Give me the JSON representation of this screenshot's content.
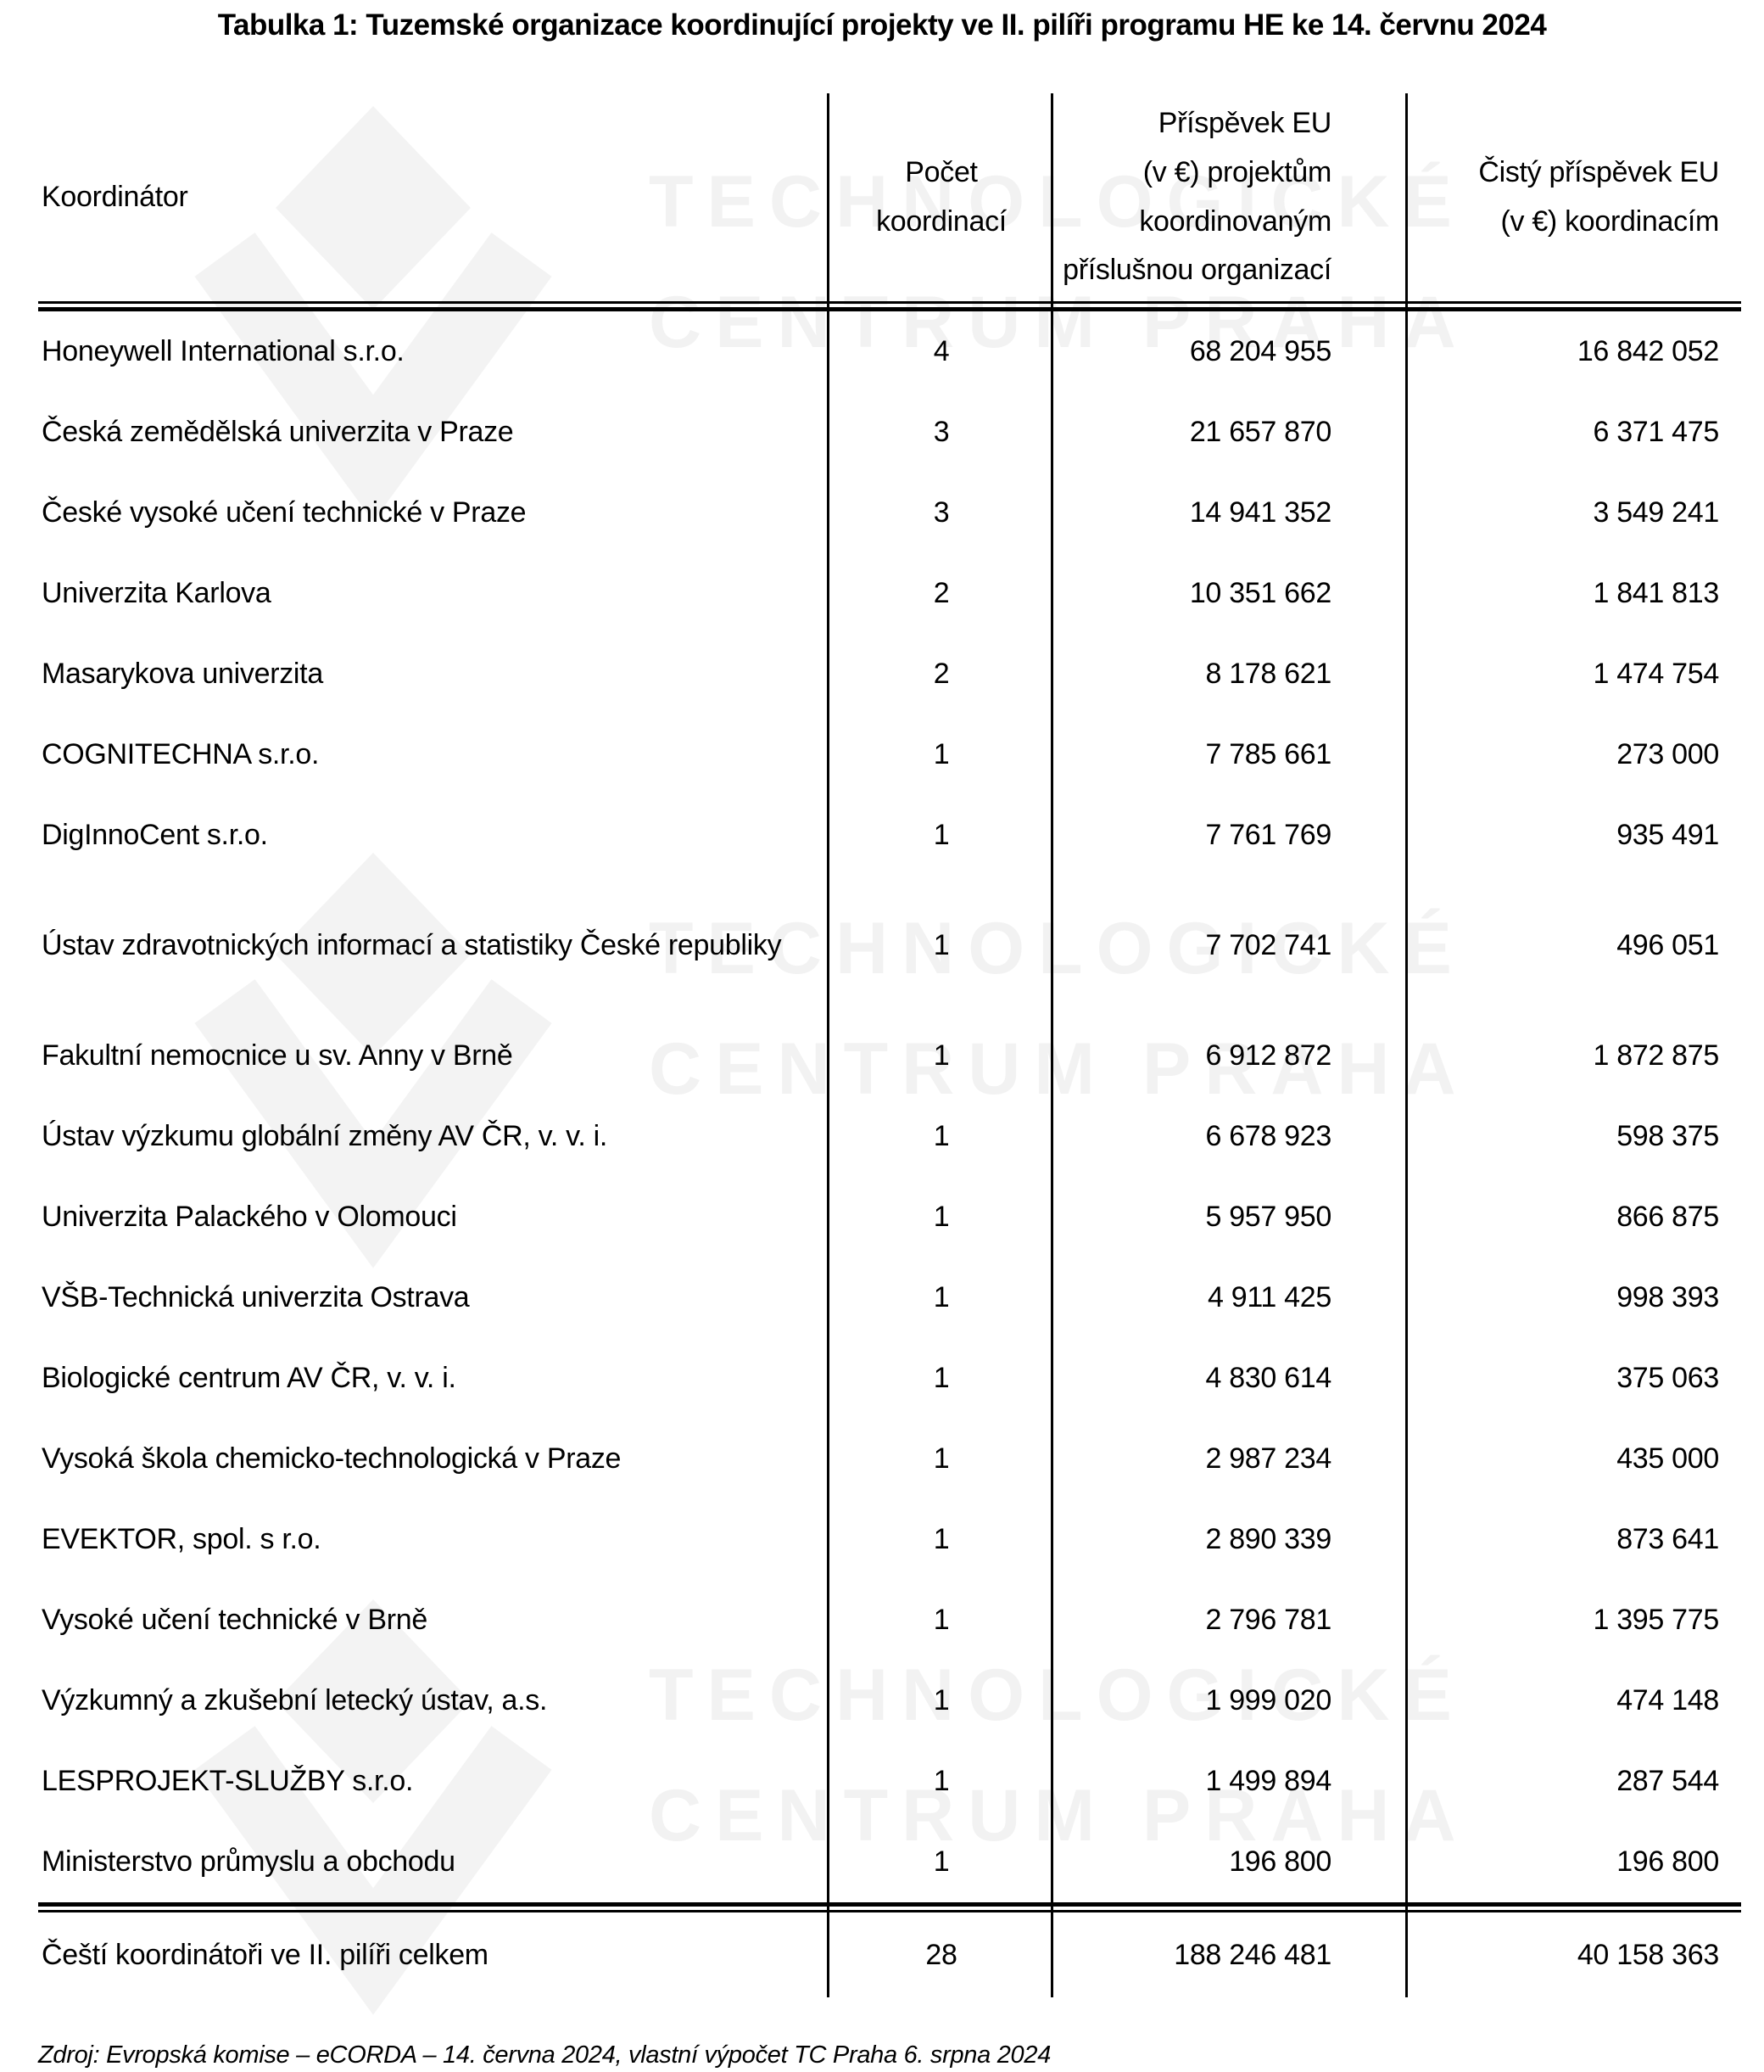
{
  "title": "Tabulka 1: Tuzemské organizace koordinující projekty ve II. pilíři programu HE ke 14. červnu 2024",
  "watermark": {
    "line1": "TECHNOLOGICKÉ",
    "line2": "CENTRUM PRAHA",
    "color": "#f2f2f2"
  },
  "chart_data": {
    "type": "table",
    "columns": [
      "Koordinátor",
      "Počet koordinací",
      "Příspěvek EU (v €) projektům koordinovaným příslušnou organizací",
      "Čistý příspěvek EU (v €) koordinacím"
    ],
    "column_lines": [
      [
        "Koordinátor"
      ],
      [
        "Počet",
        "koordinací"
      ],
      [
        "Příspěvek EU",
        "(v €) projektům",
        "koordinovaným",
        "příslušnou organizací"
      ],
      [
        "Čistý příspěvek EU",
        "(v €) koordinacím"
      ]
    ],
    "rows": [
      [
        "Honeywell International s.r.o.",
        "4",
        "68 204 955",
        "16 842 052"
      ],
      [
        "Česká zemědělská univerzita v Praze",
        "3",
        "21 657 870",
        "6 371 475"
      ],
      [
        "České vysoké učení technické v Praze",
        "3",
        "14 941 352",
        "3 549 241"
      ],
      [
        "Univerzita Karlova",
        "2",
        "10 351 662",
        "1 841 813"
      ],
      [
        "Masarykova univerzita",
        "2",
        "8 178 621",
        "1 474 754"
      ],
      [
        "COGNITECHNA s.r.o.",
        "1",
        "7 785 661",
        "273 000"
      ],
      [
        "DigInnoCent s.r.o.",
        "1",
        "7 761 769",
        "935 491"
      ],
      [
        "Ústav zdravotnických informací a statistiky České republiky",
        "1",
        "7 702 741",
        "496 051"
      ],
      [
        "Fakultní nemocnice u sv. Anny v Brně",
        "1",
        "6 912 872",
        "1 872 875"
      ],
      [
        "Ústav výzkumu globální změny AV ČR, v. v. i.",
        "1",
        "6 678 923",
        "598 375"
      ],
      [
        "Univerzita Palackého v Olomouci",
        "1",
        "5 957 950",
        "866 875"
      ],
      [
        "VŠB-Technická univerzita Ostrava",
        "1",
        "4 911 425",
        "998 393"
      ],
      [
        "Biologické centrum AV ČR, v. v. i.",
        "1",
        "4 830 614",
        "375 063"
      ],
      [
        "Vysoká škola chemicko-technologická v Praze",
        "1",
        "2 987 234",
        "435 000"
      ],
      [
        "EVEKTOR, spol. s r.o.",
        "1",
        "2 890 339",
        "873 641"
      ],
      [
        "Vysoké učení technické v Brně",
        "1",
        "2 796 781",
        "1 395 775"
      ],
      [
        "Výzkumný a zkušební letecký ústav, a.s.",
        "1",
        "1 999 020",
        "474 148"
      ],
      [
        "LESPROJEKT-SLUŽBY s.r.o.",
        "1",
        "1 499 894",
        "287 544"
      ],
      [
        "Ministerstvo průmyslu a obchodu",
        "1",
        "196 800",
        "196 800"
      ]
    ],
    "total_row": [
      "Čeští koordinátoři ve II. pilíři celkem",
      "28",
      "188 246 481",
      "40 158 363"
    ]
  },
  "footer": {
    "source": "Zdroj: Evropská komise – eCORDA – 14. června 2024, vlastní výpočet TC Praha 6. srpna 2024"
  }
}
